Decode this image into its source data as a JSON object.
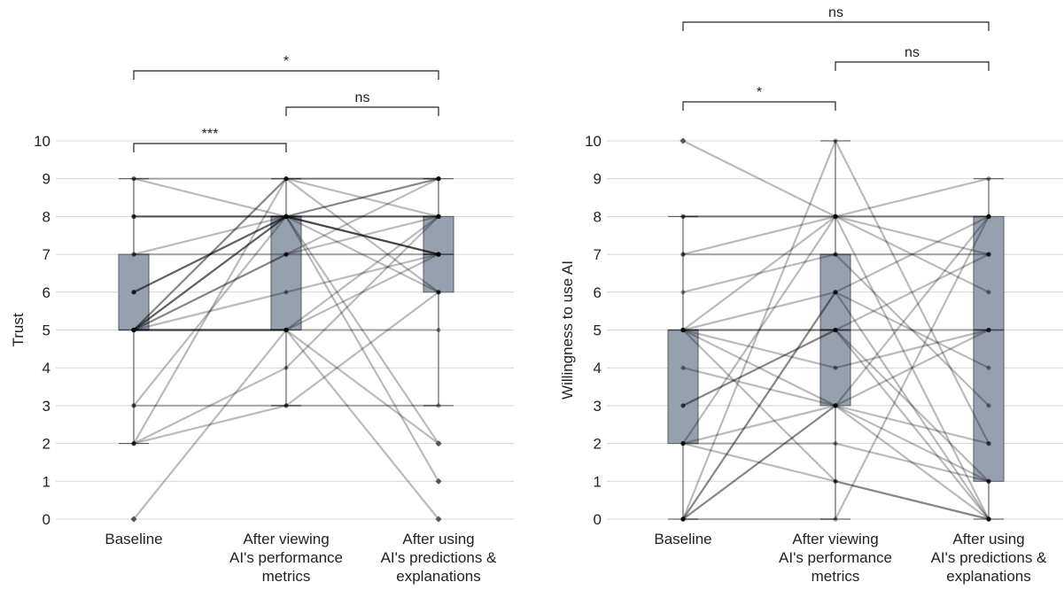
{
  "chart_data": [
    {
      "type": "box",
      "ylabel": "Trust",
      "ylim": [
        0,
        10
      ],
      "yticks": [
        "0",
        "1",
        "2",
        "3",
        "4",
        "5",
        "6",
        "7",
        "8",
        "9",
        "10"
      ],
      "categories": [
        "Baseline",
        "After viewing\nAI's performance\nmetrics",
        "After using\nAI's predictions &\nexplanations"
      ],
      "grid": true,
      "boxes": [
        {
          "q1": 5,
          "median": 5,
          "q3": 7,
          "whisker_low": 2,
          "whisker_high": 9
        },
        {
          "q1": 5,
          "median": 8,
          "q3": 8,
          "whisker_low": 3,
          "whisker_high": 9
        },
        {
          "q1": 6,
          "median": 7,
          "q3": 8,
          "whisker_low": 3,
          "whisker_high": 9
        }
      ],
      "outliers": [
        {
          "category": 0,
          "value": 0
        },
        {
          "category": 2,
          "value": 2
        },
        {
          "category": 2,
          "value": 1
        },
        {
          "category": 2,
          "value": 0
        }
      ],
      "participants": [
        [
          5,
          8,
          9
        ],
        [
          5,
          8,
          9
        ],
        [
          5,
          7,
          9
        ],
        [
          5,
          7,
          8
        ],
        [
          7,
          8,
          7
        ],
        [
          8,
          8,
          8
        ],
        [
          9,
          8,
          7
        ],
        [
          5,
          9,
          8
        ],
        [
          6,
          8,
          7
        ],
        [
          5,
          5,
          8
        ],
        [
          2,
          9,
          9
        ],
        [
          3,
          8,
          7
        ],
        [
          3,
          3,
          3
        ],
        [
          2,
          4,
          8
        ],
        [
          8,
          8,
          6
        ],
        [
          0,
          5,
          7
        ],
        [
          5,
          9,
          9
        ],
        [
          6,
          8,
          2
        ],
        [
          5,
          5,
          2
        ],
        [
          7,
          7,
          7
        ],
        [
          5,
          5,
          0
        ],
        [
          2,
          3,
          6
        ],
        [
          9,
          9,
          6
        ],
        [
          5,
          8,
          1
        ],
        [
          8,
          8,
          8
        ],
        [
          5,
          6,
          7
        ],
        [
          5,
          5,
          5
        ],
        [
          6,
          8,
          8
        ]
      ],
      "significance": [
        {
          "from": 0,
          "to": 1,
          "label": "***"
        },
        {
          "from": 1,
          "to": 2,
          "label": "ns"
        },
        {
          "from": 0,
          "to": 2,
          "label": "*"
        }
      ]
    },
    {
      "type": "box",
      "ylabel": "Willingness to use AI",
      "ylim": [
        0,
        10
      ],
      "yticks": [
        "0",
        "1",
        "2",
        "3",
        "4",
        "5",
        "6",
        "7",
        "8",
        "9",
        "10"
      ],
      "categories": [
        "Baseline",
        "After viewing\nAI's performance\nmetrics",
        "After using\nAI's predictions &\nexplanations"
      ],
      "grid": true,
      "boxes": [
        {
          "q1": 2,
          "median": 5,
          "q3": 5,
          "whisker_low": 0,
          "whisker_high": 8
        },
        {
          "q1": 3,
          "median": 5,
          "q3": 7,
          "whisker_low": 0,
          "whisker_high": 10
        },
        {
          "q1": 1,
          "median": 5,
          "q3": 8,
          "whisker_low": 0,
          "whisker_high": 9
        }
      ],
      "outliers": [
        {
          "category": 0,
          "value": 10
        }
      ],
      "participants": [
        [
          5,
          8,
          8
        ],
        [
          5,
          6,
          4
        ],
        [
          5,
          5,
          5
        ],
        [
          0,
          6,
          8
        ],
        [
          0,
          3,
          8
        ],
        [
          2,
          3,
          1
        ],
        [
          3,
          5,
          7
        ],
        [
          8,
          8,
          7
        ],
        [
          10,
          8,
          0
        ],
        [
          7,
          8,
          9
        ],
        [
          4,
          3,
          5
        ],
        [
          2,
          1,
          0
        ],
        [
          0,
          3,
          0
        ],
        [
          6,
          7,
          3
        ],
        [
          2,
          2,
          1
        ],
        [
          8,
          8,
          8
        ],
        [
          2,
          8,
          6
        ],
        [
          5,
          3,
          2
        ],
        [
          0,
          6,
          0
        ],
        [
          5,
          4,
          5
        ],
        [
          3,
          5,
          1
        ],
        [
          7,
          7,
          7
        ],
        [
          5,
          5,
          0
        ],
        [
          0,
          10,
          2
        ],
        [
          0,
          0,
          8
        ],
        [
          5,
          1,
          0
        ]
      ],
      "significance": [
        {
          "from": 0,
          "to": 1,
          "label": "*"
        },
        {
          "from": 1,
          "to": 2,
          "label": "ns"
        },
        {
          "from": 0,
          "to": 2,
          "label": "ns"
        }
      ]
    }
  ]
}
